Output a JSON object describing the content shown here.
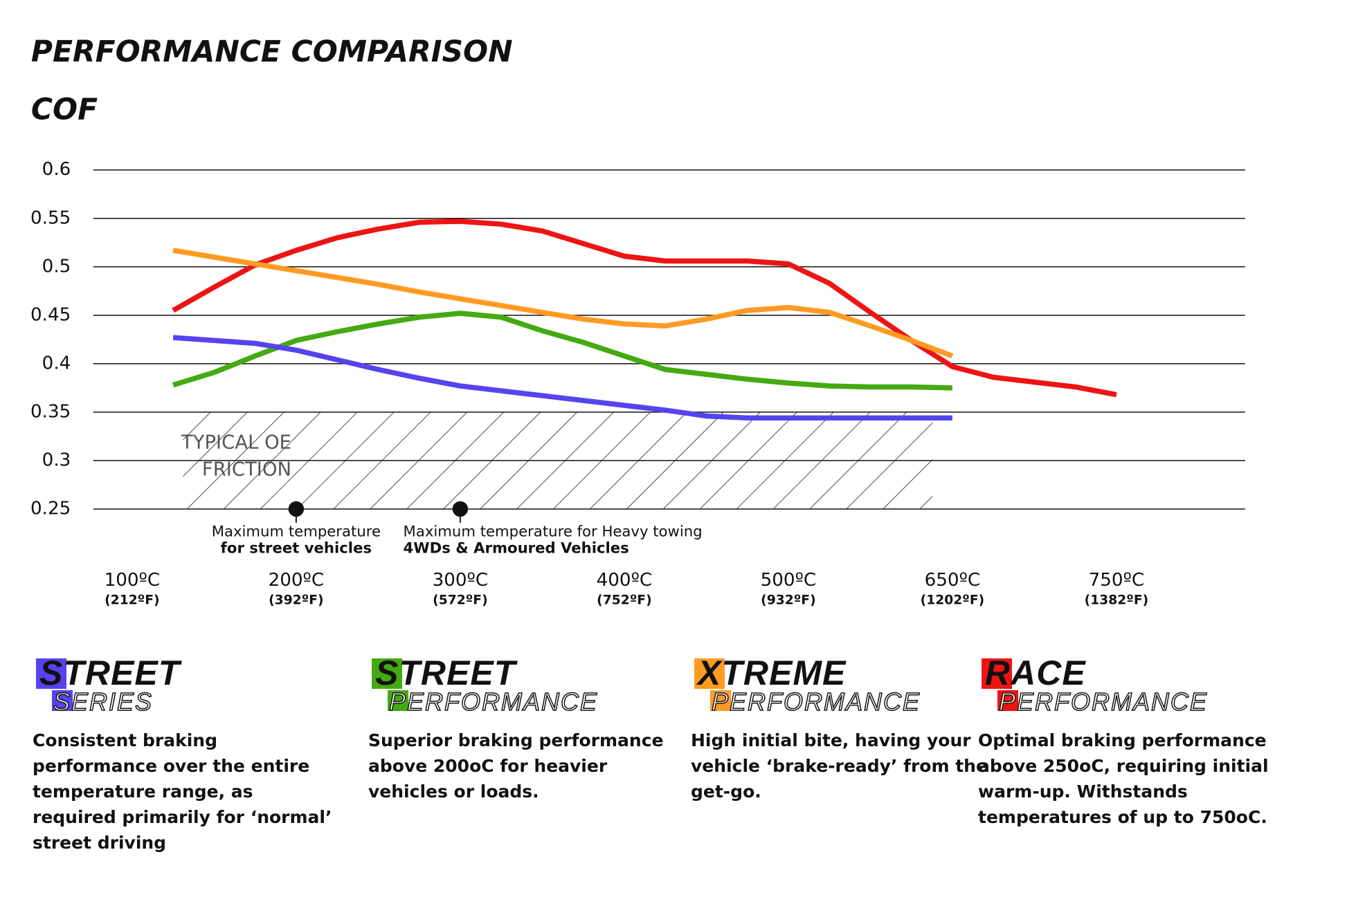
{
  "chart_data": {
    "type": "line",
    "title": "PERFORMANCE COMPARISON",
    "y_label": "COF",
    "categories": [
      "100ºC",
      null,
      null,
      null,
      "200ºC",
      null,
      null,
      null,
      "300ºC",
      null,
      null,
      null,
      "400ºC",
      null,
      null,
      null,
      "500ºC",
      null,
      null,
      null,
      "650ºC",
      null,
      null,
      null,
      "750ºC"
    ],
    "category_sublabels": [
      "(212ºF)",
      null,
      null,
      null,
      "(392ºF)",
      null,
      null,
      null,
      "(572ºF)",
      null,
      null,
      null,
      "(752ºF)",
      null,
      null,
      null,
      "(932ºF)",
      null,
      null,
      null,
      "(1202ºF)",
      null,
      null,
      null,
      "(1382ºF)"
    ],
    "ylim": [
      0.25,
      0.6
    ],
    "yticks": [
      0.25,
      0.3,
      0.35,
      0.4,
      0.45,
      0.5,
      0.55,
      0.6
    ],
    "grid": true,
    "band_label": [
      "TYPICAL OE",
      "FRICTION"
    ],
    "annotations": [
      {
        "category_index": 4,
        "lines": [
          "Maximum temperature",
          "for street vehicles"
        ]
      },
      {
        "category_index": 8,
        "lines": [
          "Maximum temperature for Heavy towing",
          "4WDs & Armoured Vehicles"
        ]
      }
    ],
    "series": [
      {
        "name": "RACE PERFORMANCE",
        "color": "#ee1414",
        "values": [
          null,
          0.455,
          0.479,
          0.502,
          0.517,
          0.53,
          0.539,
          0.546,
          0.547,
          0.544,
          0.537,
          0.524,
          0.511,
          0.506,
          0.506,
          0.506,
          0.503,
          0.483,
          0.453,
          0.424,
          0.397,
          0.386,
          0.381,
          0.376,
          0.368
        ]
      },
      {
        "name": "XTREME PERFORMANCE",
        "color": "#ff9a22",
        "values": [
          null,
          0.517,
          0.51,
          0.503,
          0.496,
          0.489,
          0.482,
          0.474,
          0.467,
          0.46,
          0.453,
          0.446,
          0.441,
          0.439,
          0.446,
          0.455,
          0.458,
          0.453,
          0.439,
          0.424,
          0.408,
          null,
          null,
          null,
          null
        ]
      },
      {
        "name": "STREET PERFORMANCE",
        "color": "#44aa11",
        "values": [
          null,
          0.378,
          0.391,
          0.408,
          0.424,
          0.433,
          0.441,
          0.448,
          0.452,
          0.448,
          0.434,
          0.422,
          0.408,
          0.394,
          0.389,
          0.384,
          0.38,
          0.377,
          0.376,
          0.376,
          0.375,
          null,
          null,
          null,
          null
        ]
      },
      {
        "name": "STREET SERIES",
        "color": "#5544ee",
        "values": [
          null,
          0.427,
          0.424,
          0.421,
          0.414,
          0.404,
          0.394,
          0.385,
          0.377,
          0.372,
          0.367,
          0.362,
          0.357,
          0.352,
          0.346,
          0.344,
          0.344,
          0.344,
          0.344,
          0.344,
          0.344,
          null,
          null,
          null,
          null
        ]
      }
    ]
  },
  "products": [
    {
      "name": "STREET",
      "subname": "SERIES",
      "color": "#5544ee",
      "description": "Consistent braking performance over the entire temperature range, as required primarily for ‘normal’ street driving"
    },
    {
      "name": "STREET",
      "subname": "PERFORMANCE",
      "color": "#44aa11",
      "description": "Superior braking performance above 200oC for heavier vehicles or loads."
    },
    {
      "name": "XTREME",
      "subname": "PERFORMANCE",
      "color": "#ff9a22",
      "description": "High initial bite, having your vehicle ‘brake-ready’ from the get-go."
    },
    {
      "name": "RACE",
      "subname": "PERFORMANCE",
      "color": "#ee1414",
      "description": "Optimal braking performance above 250oC, requiring initial warm-up. Withstands temperatures of up to 750oC."
    }
  ]
}
